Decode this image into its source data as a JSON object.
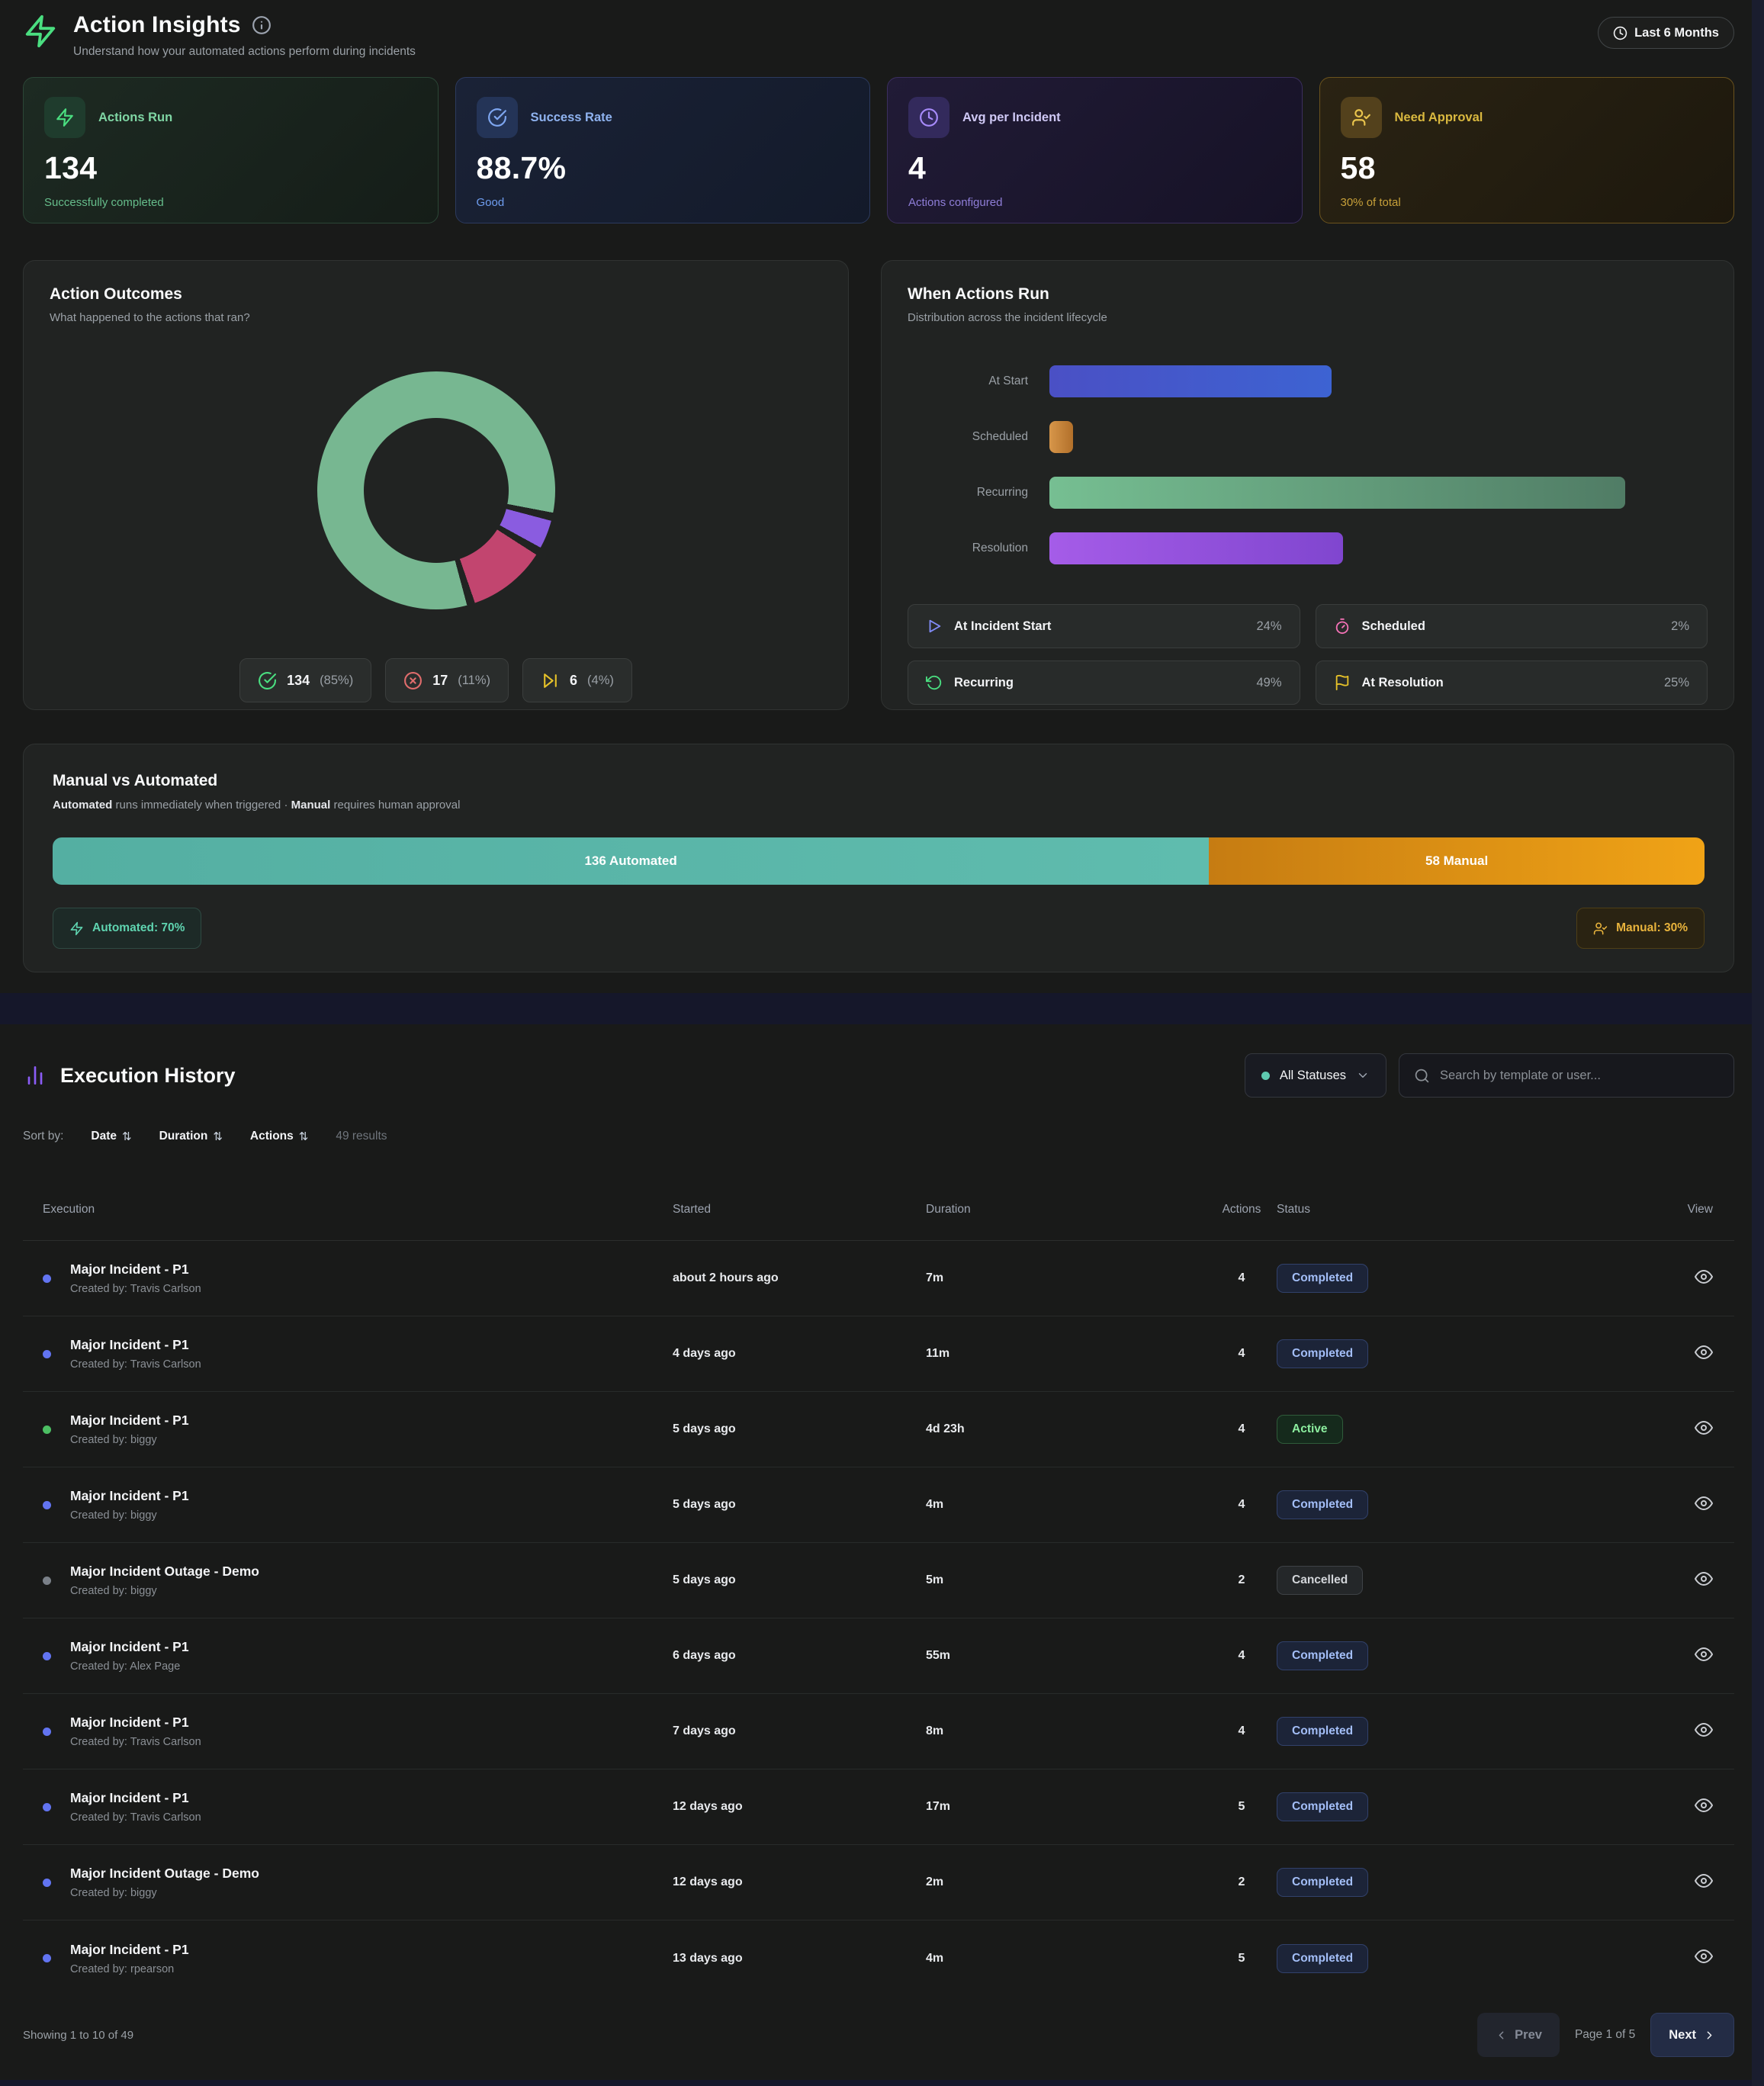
{
  "header": {
    "title": "Action Insights",
    "subtitle": "Understand how your automated actions perform during incidents",
    "time_range": "Last 6 Months"
  },
  "stat_cards": [
    {
      "label": "Actions Run",
      "value": "134",
      "sub": "Successfully completed",
      "icon": "zap-icon"
    },
    {
      "label": "Success Rate",
      "value": "88.7%",
      "sub": "Good",
      "icon": "check-circle-icon"
    },
    {
      "label": "Avg per Incident",
      "value": "4",
      "sub": "Actions configured",
      "icon": "clock-icon"
    },
    {
      "label": "Need Approval",
      "value": "58",
      "sub": "30% of total",
      "icon": "user-check-icon"
    }
  ],
  "action_outcomes": {
    "title": "Action Outcomes",
    "subtitle": "What happened to the actions that ran?",
    "legend": [
      {
        "icon": "check-circle-icon",
        "value": "134",
        "pct": "(85%)"
      },
      {
        "icon": "x-circle-icon",
        "value": "17",
        "pct": "(11%)"
      },
      {
        "icon": "skip-forward-icon",
        "value": "6",
        "pct": "(4%)"
      }
    ]
  },
  "when_actions_run": {
    "title": "When Actions Run",
    "subtitle": "Distribution across the incident lifecycle",
    "bar_labels": [
      "At Start",
      "Scheduled",
      "Recurring",
      "Resolution"
    ],
    "legend": [
      {
        "icon": "play-icon",
        "label": "At Incident Start",
        "pct": "24%"
      },
      {
        "icon": "timer-icon",
        "label": "Scheduled",
        "pct": "2%"
      },
      {
        "icon": "rotate-ccw-icon",
        "label": "Recurring",
        "pct": "49%"
      },
      {
        "icon": "flag-icon",
        "label": "At Resolution",
        "pct": "25%"
      }
    ]
  },
  "manual_vs_automated": {
    "title": "Manual vs Automated",
    "subtitle": {
      "bold1": "Automated",
      "text1": " runs immediately when triggered",
      "sep": " · ",
      "bold2": "Manual",
      "text2": " requires human approval"
    },
    "automated_label": "136 Automated",
    "manual_label": "58 Manual",
    "automated_chip": "Automated: 70%",
    "manual_chip": "Manual: 30%"
  },
  "execution_history": {
    "title": "Execution History",
    "status_filter": "All Statuses",
    "search_placeholder": "Search by template or user...",
    "sort": {
      "label": "Sort by:",
      "arrows": "⇅",
      "options": [
        "Date",
        "Duration",
        "Actions"
      ],
      "results": "49 results"
    },
    "columns": [
      "Execution",
      "Started",
      "Duration",
      "Actions",
      "Status",
      "View"
    ],
    "rows": [
      {
        "title": "Major Incident - P1",
        "creator": "Created by: Travis Carlson",
        "started": "about 2 hours ago",
        "duration": "7m",
        "actions": "4",
        "status": "Completed",
        "variant": "completed"
      },
      {
        "title": "Major Incident - P1",
        "creator": "Created by: Travis Carlson",
        "started": "4 days ago",
        "duration": "11m",
        "actions": "4",
        "status": "Completed",
        "variant": "completed"
      },
      {
        "title": "Major Incident - P1",
        "creator": "Created by: biggy",
        "started": "5 days ago",
        "duration": "4d 23h",
        "actions": "4",
        "status": "Active",
        "variant": "active"
      },
      {
        "title": "Major Incident - P1",
        "creator": "Created by: biggy",
        "started": "5 days ago",
        "duration": "4m",
        "actions": "4",
        "status": "Completed",
        "variant": "completed"
      },
      {
        "title": "Major Incident Outage - Demo",
        "creator": "Created by: biggy",
        "started": "5 days ago",
        "duration": "5m",
        "actions": "2",
        "status": "Cancelled",
        "variant": "cancelled"
      },
      {
        "title": "Major Incident - P1",
        "creator": "Created by: Alex Page",
        "started": "6 days ago",
        "duration": "55m",
        "actions": "4",
        "status": "Completed",
        "variant": "completed"
      },
      {
        "title": "Major Incident - P1",
        "creator": "Created by: Travis Carlson",
        "started": "7 days ago",
        "duration": "8m",
        "actions": "4",
        "status": "Completed",
        "variant": "completed"
      },
      {
        "title": "Major Incident - P1",
        "creator": "Created by: Travis Carlson",
        "started": "12 days ago",
        "duration": "17m",
        "actions": "5",
        "status": "Completed",
        "variant": "completed"
      },
      {
        "title": "Major Incident Outage - Demo",
        "creator": "Created by: biggy",
        "started": "12 days ago",
        "duration": "2m",
        "actions": "2",
        "status": "Completed",
        "variant": "completed"
      },
      {
        "title": "Major Incident - P1",
        "creator": "Created by: rpearson",
        "started": "13 days ago",
        "duration": "4m",
        "actions": "5",
        "status": "Completed",
        "variant": "completed"
      }
    ],
    "footer": {
      "showing": "Showing 1 to 10 of 49",
      "prev": "Prev",
      "page": "Page 1 of 5",
      "next": "Next"
    }
  },
  "chart_data": [
    {
      "type": "pie",
      "title": "Action Outcomes",
      "donut": true,
      "labels": [
        "Completed",
        "Failed",
        "Skipped"
      ],
      "values": [
        134,
        17,
        6
      ],
      "percents": [
        85,
        11,
        4
      ],
      "colors": [
        "#77b791",
        "#c2456f",
        "#8a5ce0"
      ],
      "clockwise_order_from_top": [
        "Completed",
        "Skipped",
        "Failed"
      ]
    },
    {
      "type": "bar",
      "title": "When Actions Run",
      "orientation": "horizontal",
      "categories": [
        "At Start",
        "Scheduled",
        "Recurring",
        "Resolution"
      ],
      "values": [
        24,
        2,
        49,
        25
      ],
      "unit": "%",
      "xlim": [
        0,
        56
      ],
      "colors": [
        "#4a50c5",
        "#c98339",
        "#68a981",
        "#944fd8"
      ]
    },
    {
      "type": "stacked-bar",
      "title": "Manual vs Automated",
      "series": [
        {
          "name": "Automated",
          "value": 136,
          "pct": 70
        },
        {
          "name": "Manual",
          "value": 58,
          "pct": 30
        }
      ],
      "colors": [
        "#57b3a6",
        "#e9980e"
      ]
    }
  ],
  "colors": {
    "page_bg": "#191a19",
    "panel_bg": "#212322",
    "accent_green": "#4ade80",
    "accent_blue": "#7ea6f0",
    "accent_purple": "#a78bfa",
    "accent_amber": "#e7c14b",
    "teal": "#57b3a6",
    "orange": "#e9980e"
  }
}
